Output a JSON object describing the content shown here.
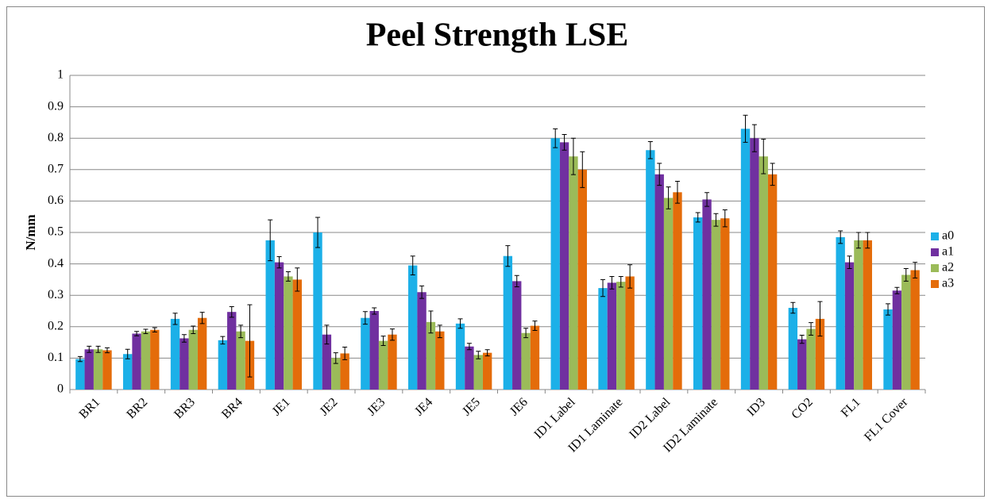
{
  "chart_data": {
    "type": "bar",
    "title": "Peel Strength LSE",
    "y_label": "N/mm",
    "categories": [
      "BR1",
      "BR2",
      "BR3",
      "BR4",
      "JE1",
      "JE2",
      "JE3",
      "JE4",
      "JE5",
      "JE6",
      "ID1 Label",
      "ID1 Laminate",
      "ID2 Label",
      "ID2 Laminate",
      "ID3",
      "CO2",
      "FL1",
      "FL1 Cover"
    ],
    "series": [
      {
        "name": "a0",
        "color": "#1cb0e8",
        "values": [
          0.097,
          0.113,
          0.225,
          0.157,
          0.475,
          0.5,
          0.228,
          0.395,
          0.21,
          0.425,
          0.8,
          0.323,
          0.762,
          0.548,
          0.83,
          0.26,
          0.485,
          0.255
        ],
        "errors": [
          0.008,
          0.015,
          0.018,
          0.012,
          0.065,
          0.048,
          0.02,
          0.03,
          0.015,
          0.033,
          0.03,
          0.027,
          0.027,
          0.015,
          0.043,
          0.017,
          0.02,
          0.018
        ]
      },
      {
        "name": "a1",
        "color": "#7030a0",
        "values": [
          0.128,
          0.178,
          0.163,
          0.247,
          0.405,
          0.175,
          0.25,
          0.31,
          0.137,
          0.345,
          0.787,
          0.34,
          0.685,
          0.605,
          0.8,
          0.16,
          0.405,
          0.315
        ],
        "errors": [
          0.01,
          0.007,
          0.012,
          0.017,
          0.018,
          0.03,
          0.01,
          0.02,
          0.01,
          0.018,
          0.025,
          0.02,
          0.035,
          0.022,
          0.043,
          0.013,
          0.02,
          0.01
        ]
      },
      {
        "name": "a2",
        "color": "#9bbb59",
        "values": [
          0.128,
          0.185,
          0.19,
          0.185,
          0.36,
          0.1,
          0.155,
          0.215,
          0.11,
          0.18,
          0.742,
          0.343,
          0.61,
          0.54,
          0.742,
          0.193,
          0.475,
          0.365
        ],
        "errors": [
          0.01,
          0.007,
          0.012,
          0.02,
          0.015,
          0.017,
          0.015,
          0.035,
          0.012,
          0.015,
          0.058,
          0.017,
          0.035,
          0.02,
          0.055,
          0.02,
          0.025,
          0.02
        ]
      },
      {
        "name": "a3",
        "color": "#e46c0a",
        "values": [
          0.125,
          0.19,
          0.228,
          0.155,
          0.35,
          0.115,
          0.175,
          0.185,
          0.117,
          0.203,
          0.7,
          0.36,
          0.628,
          0.545,
          0.685,
          0.225,
          0.475,
          0.38
        ],
        "errors": [
          0.008,
          0.007,
          0.018,
          0.115,
          0.037,
          0.02,
          0.018,
          0.02,
          0.01,
          0.015,
          0.057,
          0.037,
          0.035,
          0.027,
          0.035,
          0.055,
          0.025,
          0.025
        ]
      }
    ],
    "ylim": [
      0,
      1
    ],
    "yticks": [
      0,
      0.1,
      0.2,
      0.3,
      0.4,
      0.5,
      0.6,
      0.7,
      0.8,
      0.9,
      1
    ],
    "grid": true,
    "legend": "right"
  }
}
